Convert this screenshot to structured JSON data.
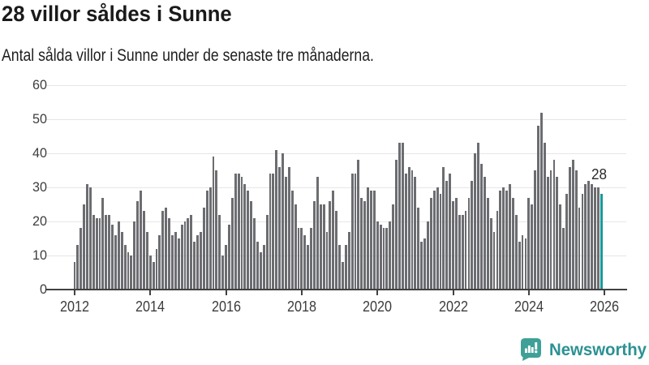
{
  "header": {
    "title": "28 villor såldes i Sunne",
    "subtitle": "Antal sålda villor i Sunne under de senaste tre månaderna."
  },
  "chart_data": {
    "type": "bar",
    "title": "28 villor såldes i Sunne",
    "subtitle": "Antal sålda villor i Sunne under de senaste tre månaderna.",
    "unit": "sålda villor (rullande 3 månader)",
    "x_start": "2012-01",
    "frequency": "monthly",
    "values": [
      8,
      13,
      18,
      25,
      31,
      30,
      22,
      21,
      21,
      27,
      22,
      22,
      19,
      16,
      20,
      17,
      13,
      11,
      10,
      20,
      26,
      29,
      23,
      17,
      10,
      8,
      12,
      16,
      23,
      24,
      21,
      16,
      17,
      15,
      19,
      20,
      21,
      22,
      14,
      16,
      17,
      24,
      29,
      30,
      39,
      35,
      22,
      10,
      13,
      19,
      27,
      34,
      34,
      33,
      31,
      29,
      26,
      21,
      14,
      11,
      13,
      22,
      34,
      34,
      41,
      36,
      40,
      33,
      36,
      29,
      25,
      18,
      18,
      16,
      13,
      18,
      26,
      33,
      25,
      25,
      17,
      26,
      29,
      23,
      13,
      8,
      13,
      17,
      34,
      34,
      38,
      27,
      26,
      30,
      29,
      29,
      20,
      19,
      18,
      18,
      20,
      25,
      38,
      43,
      43,
      34,
      36,
      35,
      33,
      24,
      14,
      15,
      20,
      27,
      29,
      30,
      28,
      36,
      32,
      34,
      26,
      27,
      22,
      22,
      23,
      27,
      32,
      40,
      43,
      37,
      33,
      27,
      21,
      17,
      23,
      29,
      30,
      29,
      31,
      27,
      22,
      14,
      16,
      15,
      27,
      25,
      35,
      48,
      52,
      43,
      33,
      35,
      38,
      33,
      25,
      18,
      28,
      36,
      38,
      35,
      24,
      28,
      31,
      32,
      31,
      30,
      30,
      28
    ],
    "highlight_index": 167,
    "highlight_value": 28,
    "highlight_label": "28",
    "ylim": [
      0,
      60
    ],
    "yticks": [
      0,
      10,
      20,
      30,
      40,
      50,
      60
    ],
    "xticks": [
      "2012",
      "2014",
      "2016",
      "2018",
      "2020",
      "2022",
      "2024",
      "2026"
    ],
    "grid": "horizontal",
    "legend": "none",
    "colors": {
      "bar": "#6c6d71",
      "highlight": "#199a9b",
      "gridline": "#e6e6e8",
      "axis": "#414141",
      "tick_label": "#3c3c3c"
    }
  },
  "footer": {
    "brand": "Newsworthy",
    "logo_color": "#3fa098",
    "brand_color": "#2c9193"
  }
}
